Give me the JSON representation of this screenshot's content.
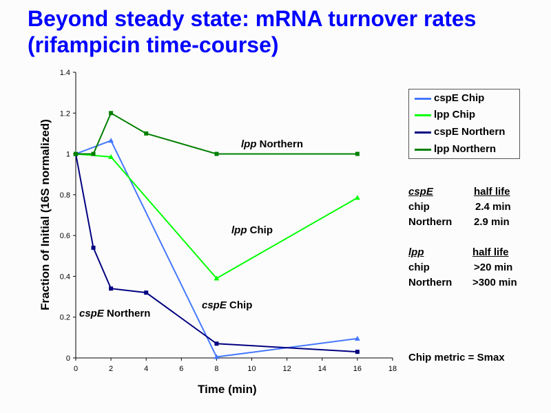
{
  "title_line1": "Beyond steady state: mRNA turnover rates",
  "title_line2": "(rifampicin time-course)",
  "chart_data": {
    "type": "line",
    "xlabel": "Time (min)",
    "ylabel": "Fraction of Initial (16S normalized)",
    "xlim": [
      0,
      18
    ],
    "ylim": [
      0,
      1.4
    ],
    "xticks": [
      "0",
      "2",
      "4",
      "6",
      "8",
      "10",
      "12",
      "14",
      "16",
      "18"
    ],
    "yticks": [
      "0",
      "0.2",
      "0.4",
      "0.6",
      "0.8",
      "1",
      "1.2",
      "1.4"
    ],
    "legend_position": "right",
    "series": [
      {
        "name": "cspE Chip",
        "color": "#4477ff",
        "marker": "triangle",
        "x": [
          0,
          2,
          8,
          16
        ],
        "y": [
          1.0,
          1.065,
          0.005,
          0.095
        ]
      },
      {
        "name": "lpp Chip",
        "color": "#00ff00",
        "marker": "triangle",
        "x": [
          0,
          2,
          8,
          16
        ],
        "y": [
          1.0,
          0.985,
          0.39,
          0.785
        ]
      },
      {
        "name": "cspE Northern",
        "color": "#000080",
        "marker": "square",
        "x": [
          0,
          1,
          2,
          4,
          8,
          16
        ],
        "y": [
          1.0,
          0.54,
          0.34,
          0.32,
          0.07,
          0.03
        ]
      },
      {
        "name": "lpp Northern",
        "color": "#008000",
        "marker": "square",
        "x": [
          0,
          1,
          2,
          4,
          8,
          16
        ],
        "y": [
          1.0,
          1.0,
          1.2,
          1.1,
          1.0,
          1.0
        ]
      }
    ],
    "annotations": {
      "lpp_northern": {
        "gene": "lpp",
        "rest": "Northern"
      },
      "lpp_chip": {
        "gene": "lpp",
        "rest": "Chip"
      },
      "cspe_chip": {
        "gene": "cspE",
        "rest": "Chip"
      },
      "cspe_northern": {
        "gene": "cspE",
        "rest": "Northern"
      }
    }
  },
  "half_life": {
    "cspe": {
      "gene": "cspE",
      "header": "half life",
      "rows": [
        [
          "chip",
          "2.4 min"
        ],
        [
          "Northern",
          "2.9 min"
        ]
      ]
    },
    "lpp": {
      "gene": "lpp",
      "header": "half life",
      "rows": [
        [
          "chip",
          ">20 min"
        ],
        [
          "Northern",
          ">300 min"
        ]
      ]
    }
  },
  "metric_note": "Chip metric = Smax"
}
